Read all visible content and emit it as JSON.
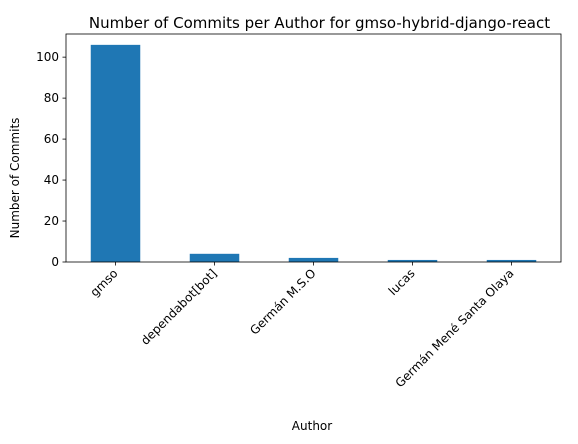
{
  "chart_data": {
    "type": "bar",
    "title": "Number of Commits per Author for gmso-hybrid-django-react",
    "xlabel": "Author",
    "ylabel": "Number of Commits",
    "categories": [
      "gmso",
      "dependabot[bot]",
      "Germán M.S.O",
      "lucas",
      "Germán Mené Santa Olaya"
    ],
    "values": [
      106,
      4,
      2,
      1,
      1
    ],
    "ylim": [
      0,
      111.3
    ],
    "yticks": [
      0,
      20,
      40,
      60,
      80,
      100
    ],
    "color": "#1f77b4",
    "grid": false,
    "legend": "none"
  }
}
